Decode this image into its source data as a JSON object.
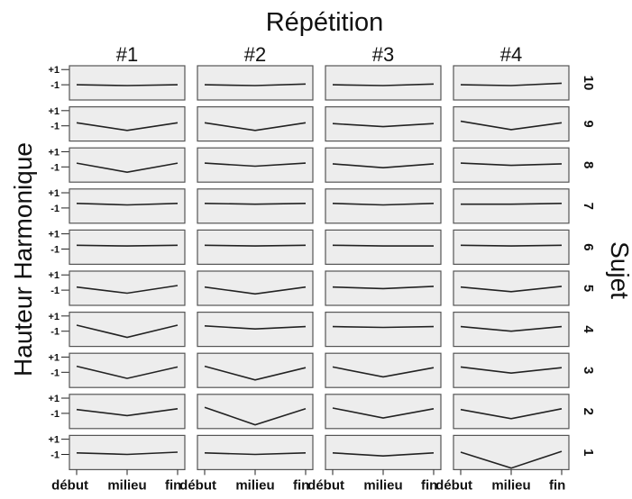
{
  "chart_data": {
    "type": "line",
    "title": "Répétition",
    "xlabel": "",
    "ylabel": "Hauteur Harmonique",
    "right_label": "Sujet",
    "x": [
      "début",
      "milieu",
      "fin"
    ],
    "column_labels": [
      "#1",
      "#2",
      "#3",
      "#4"
    ],
    "row_labels": [
      "10",
      "9",
      "8",
      "7",
      "6",
      "5",
      "4",
      "3",
      "2",
      "1"
    ],
    "y_ticks": [
      "+1",
      "-1"
    ],
    "ylim": [
      -3,
      1.5
    ],
    "grid": false,
    "legend": "none",
    "line_color": "#222222",
    "panel_color": "#ededed",
    "panels": [
      [
        [
          -1.0,
          -1.1,
          -1.0
        ],
        [
          -1.0,
          -1.1,
          -0.9
        ],
        [
          -1.0,
          -1.1,
          -0.9
        ],
        [
          -1.0,
          -1.1,
          -0.8
        ]
      ],
      [
        [
          -0.6,
          -1.6,
          -0.6
        ],
        [
          -0.6,
          -1.6,
          -0.6
        ],
        [
          -0.7,
          -1.1,
          -0.7
        ],
        [
          -0.4,
          -1.5,
          -0.6
        ]
      ],
      [
        [
          -0.5,
          -1.7,
          -0.5
        ],
        [
          -0.5,
          -0.9,
          -0.5
        ],
        [
          -0.6,
          -1.1,
          -0.6
        ],
        [
          -0.5,
          -0.8,
          -0.6
        ]
      ],
      [
        [
          -0.4,
          -0.6,
          -0.4
        ],
        [
          -0.4,
          -0.5,
          -0.4
        ],
        [
          -0.4,
          -0.6,
          -0.4
        ],
        [
          -0.5,
          -0.5,
          -0.4
        ]
      ],
      [
        [
          -0.5,
          -0.6,
          -0.5
        ],
        [
          -0.5,
          -0.6,
          -0.5
        ],
        [
          -0.5,
          -0.6,
          -0.6
        ],
        [
          -0.5,
          -0.6,
          -0.5
        ]
      ],
      [
        [
          -0.6,
          -1.4,
          -0.4
        ],
        [
          -0.6,
          -1.5,
          -0.6
        ],
        [
          -0.6,
          -0.8,
          -0.5
        ],
        [
          -0.6,
          -1.2,
          -0.5
        ]
      ],
      [
        [
          -0.2,
          -1.8,
          -0.2
        ],
        [
          -0.3,
          -0.7,
          -0.4
        ],
        [
          -0.4,
          -0.5,
          -0.4
        ],
        [
          -0.4,
          -1.0,
          -0.4
        ]
      ],
      [
        [
          -0.2,
          -1.8,
          -0.3
        ],
        [
          -0.2,
          -2.0,
          -0.4
        ],
        [
          -0.3,
          -1.6,
          -0.4
        ],
        [
          -0.3,
          -1.1,
          -0.4
        ]
      ],
      [
        [
          -0.5,
          -1.3,
          -0.4
        ],
        [
          -0.2,
          -2.5,
          -0.4
        ],
        [
          -0.3,
          -1.6,
          -0.4
        ],
        [
          -0.5,
          -1.7,
          -0.4
        ]
      ],
      [
        [
          -0.8,
          -1.0,
          -0.7
        ],
        [
          -0.8,
          -1.0,
          -0.8
        ],
        [
          -0.8,
          -1.2,
          -0.8
        ],
        [
          -0.7,
          -2.8,
          -0.6
        ]
      ]
    ]
  }
}
